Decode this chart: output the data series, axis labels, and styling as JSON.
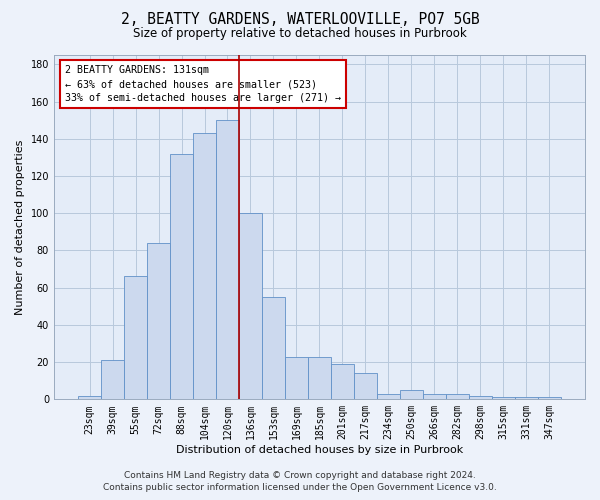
{
  "title_line1": "2, BEATTY GARDENS, WATERLOOVILLE, PO7 5GB",
  "title_line2": "Size of property relative to detached houses in Purbrook",
  "xlabel": "Distribution of detached houses by size in Purbrook",
  "ylabel": "Number of detached properties",
  "annotation_line1": "2 BEATTY GARDENS: 131sqm",
  "annotation_line2": "← 63% of detached houses are smaller (523)",
  "annotation_line3": "33% of semi-detached houses are larger (271) →",
  "footer_line1": "Contains HM Land Registry data © Crown copyright and database right 2024.",
  "footer_line2": "Contains public sector information licensed under the Open Government Licence v3.0.",
  "categories": [
    "23sqm",
    "39sqm",
    "55sqm",
    "72sqm",
    "88sqm",
    "104sqm",
    "120sqm",
    "136sqm",
    "153sqm",
    "169sqm",
    "185sqm",
    "201sqm",
    "217sqm",
    "234sqm",
    "250sqm",
    "266sqm",
    "282sqm",
    "298sqm",
    "315sqm",
    "331sqm",
    "347sqm"
  ],
  "values": [
    2,
    21,
    66,
    84,
    132,
    143,
    150,
    100,
    55,
    23,
    23,
    19,
    14,
    3,
    5,
    3,
    3,
    2,
    1,
    1,
    1
  ],
  "bar_color": "#ccd9ee",
  "bar_edge_color": "#6090c8",
  "grid_color": "#b8c8dc",
  "background_color": "#e4ecf8",
  "fig_background_color": "#edf2fa",
  "annotation_box_color": "#ffffff",
  "annotation_box_edge_color": "#cc0000",
  "red_line_x": 6.5,
  "ylim": [
    0,
    185
  ],
  "yticks": [
    0,
    20,
    40,
    60,
    80,
    100,
    120,
    140,
    160,
    180
  ],
  "title_fontsize": 10.5,
  "subtitle_fontsize": 8.5,
  "tick_fontsize": 7,
  "axis_label_fontsize": 8,
  "footer_fontsize": 6.5
}
